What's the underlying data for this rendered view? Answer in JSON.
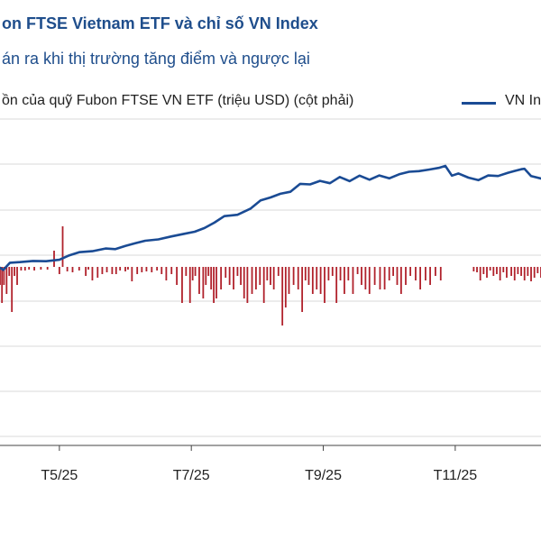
{
  "header": {
    "title": "on FTSE Vietnam ETF và chỉ số VN Index",
    "subtitle": "án ra khi thị trường tăng điểm và ngược lại"
  },
  "legend": {
    "flows_label": "ồn của quỹ Fubon FTSE VN ETF (triệu USD) (cột phải)",
    "index_label": "VN In"
  },
  "colors": {
    "line": "#1a4b94",
    "bar": "#b0212b",
    "grid": "#d9d9d9",
    "title": "#1f4e8c"
  },
  "chart_data": {
    "type": "line+bar",
    "title": "on FTSE Vietnam ETF và chỉ số VN Index",
    "subtitle": "án ra khi thị trường tăng điểm và ngược lại",
    "x_tick_labels": [
      "T5/25",
      "T7/25",
      "T9/25",
      "T11/25"
    ],
    "x_tick_positions_month": [
      4.0,
      6.0,
      8.0,
      10.0
    ],
    "x_range_month": [
      3.1,
      11.3
    ],
    "legend_placement": "top",
    "series": [
      {
        "name": "VN Index",
        "type": "line",
        "axis": "left (not visible)",
        "x_month": [
          3.1,
          3.15,
          3.25,
          3.4,
          3.6,
          3.8,
          4.0,
          4.15,
          4.3,
          4.5,
          4.7,
          4.85,
          5.0,
          5.15,
          5.3,
          5.5,
          5.7,
          5.9,
          6.05,
          6.2,
          6.35,
          6.5,
          6.7,
          6.9,
          7.05,
          7.2,
          7.35,
          7.5,
          7.65,
          7.8,
          7.95,
          8.1,
          8.25,
          8.4,
          8.55,
          8.7,
          8.85,
          9.0,
          9.15,
          9.3,
          9.45,
          9.6,
          9.75,
          9.85,
          9.95,
          10.05,
          10.2,
          10.35,
          10.5,
          10.65,
          10.8,
          10.9,
          11.0,
          11.05,
          11.15,
          11.3
        ],
        "values": [
          1206,
          1195,
          1232,
          1235,
          1241,
          1240,
          1247,
          1270,
          1286,
          1291,
          1305,
          1302,
          1318,
          1332,
          1345,
          1352,
          1367,
          1381,
          1391,
          1410,
          1438,
          1471,
          1478,
          1510,
          1552,
          1567,
          1586,
          1596,
          1637,
          1634,
          1652,
          1640,
          1672,
          1651,
          1679,
          1658,
          1680,
          1665,
          1686,
          1699,
          1702,
          1710,
          1719,
          1729,
          1679,
          1690,
          1669,
          1656,
          1680,
          1677,
          1694,
          1703,
          1712,
          1714,
          1677,
          1664
        ]
      },
      {
        "name": "Dòng vốn của quỹ Fubon FTSE VN ETF (triệu USD) (cột phải)",
        "type": "bar",
        "axis": "right (not visible)",
        "x_month": [
          3.1,
          3.13,
          3.16,
          3.2,
          3.24,
          3.28,
          3.32,
          3.36,
          3.42,
          3.48,
          3.54,
          3.62,
          3.72,
          3.82,
          3.92,
          4.0,
          4.05,
          4.12,
          4.2,
          4.3,
          4.4,
          4.44,
          4.5,
          4.58,
          4.65,
          4.72,
          4.8,
          4.86,
          4.92,
          5.0,
          5.04,
          5.1,
          5.18,
          5.25,
          5.32,
          5.4,
          5.48,
          5.55,
          5.62,
          5.7,
          5.78,
          5.86,
          5.92,
          5.98,
          6.02,
          6.06,
          6.12,
          6.18,
          6.22,
          6.26,
          6.3,
          6.34,
          6.38,
          6.45,
          6.52,
          6.58,
          6.64,
          6.7,
          6.75,
          6.8,
          6.85,
          6.92,
          6.98,
          7.04,
          7.1,
          7.15,
          7.2,
          7.25,
          7.32,
          7.38,
          7.43,
          7.48,
          7.55,
          7.62,
          7.68,
          7.73,
          7.78,
          7.84,
          7.9,
          7.96,
          8.02,
          8.08,
          8.14,
          8.2,
          8.26,
          8.32,
          8.38,
          8.45,
          8.52,
          8.58,
          8.64,
          8.7,
          8.78,
          8.86,
          8.93,
          9.0,
          9.06,
          9.12,
          9.18,
          9.25,
          9.32,
          9.4,
          9.47,
          9.55,
          9.62,
          9.7,
          9.78,
          10.28,
          10.33,
          10.38,
          10.43,
          10.48,
          10.53,
          10.58,
          10.63,
          10.68,
          10.73,
          10.78,
          10.85,
          10.9,
          10.95,
          11.0,
          11.05,
          11.1,
          11.15,
          11.2,
          11.25,
          11.3
        ],
        "values": [
          -2,
          -4,
          -2,
          -3,
          -1,
          -5,
          -1,
          -2,
          -0.4,
          -0.4,
          -0.3,
          -0.4,
          -0.3,
          -0.3,
          1.8,
          -0.8,
          4.5,
          -0.5,
          -0.6,
          -0.4,
          -1,
          -0.3,
          -1.5,
          -1.2,
          -0.8,
          -0.6,
          -0.8,
          -0.8,
          -0.4,
          -0.5,
          -0.3,
          -1.6,
          -0.8,
          -0.6,
          -0.5,
          -0.6,
          -0.4,
          -0.8,
          -1.5,
          -0.8,
          -2,
          -4,
          -1,
          -4,
          -1.5,
          -1,
          -3,
          -3.5,
          -2,
          -1,
          -2.5,
          -4,
          -3.5,
          -2.5,
          -1.2,
          -2,
          -2.5,
          -1,
          -2,
          -3.5,
          -4,
          -3,
          -2.5,
          -2,
          -4,
          -1.5,
          -2,
          -2.5,
          -1,
          -6.5,
          -4.5,
          -3,
          -2,
          -2.5,
          -5,
          -1.5,
          -2,
          -3,
          -2.5,
          -3,
          -4,
          -1.5,
          -1,
          -4,
          -1.5,
          -3,
          -1.5,
          -3,
          -0.8,
          -2,
          -2.5,
          -3,
          -2,
          -2.5,
          -2.5,
          -1.5,
          -1,
          -2,
          -3,
          -2,
          -1,
          -1.5,
          -2.5,
          -1.5,
          -2,
          -1,
          -1.5,
          -0.5,
          -0.6,
          -1.5,
          -0.8,
          -1.2,
          -0.4,
          -1,
          -0.8,
          -1.5,
          -0.6,
          -1.2,
          -1,
          -1.5,
          -0.8,
          -1,
          -1.5,
          -1,
          -1.6,
          -1.2,
          -0.7,
          -1.2
        ]
      }
    ],
    "grid": "horizontal"
  }
}
